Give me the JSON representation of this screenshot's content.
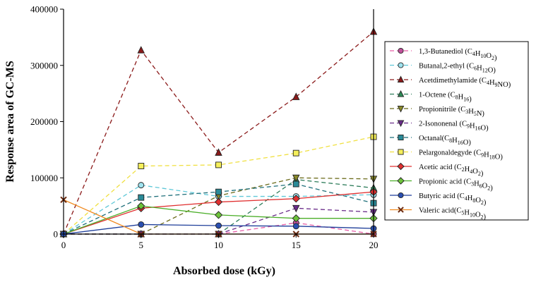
{
  "chart_data": {
    "type": "line",
    "title": "",
    "xlabel": "Absorbed dose (kGy)",
    "ylabel": "Response area of GC-MS",
    "x": [
      0,
      5,
      10,
      15,
      20
    ],
    "xlim": [
      0,
      20
    ],
    "ylim": [
      0,
      400000
    ],
    "x_ticks": [
      "0",
      "5",
      "10",
      "15",
      "20"
    ],
    "y_ticks": [
      "0",
      "100000",
      "200000",
      "300000",
      "400000"
    ],
    "grid": false,
    "legend_position": "right",
    "series": [
      {
        "name": "1,3-Butanediol (C4H10O2)",
        "name_parts": [
          {
            "t": "1,3-Butanediol (C"
          },
          {
            "t": "4",
            "sub": true
          },
          {
            "t": "H"
          },
          {
            "t": "10",
            "sub": true
          },
          {
            "t": "O"
          },
          {
            "t": "2",
            "sub": true
          },
          {
            "t": ")"
          }
        ],
        "values": [
          0,
          0,
          0,
          20000,
          0
        ],
        "color": "#e75fa8",
        "fill": "#c0509a",
        "marker": "circle",
        "dash": "6,4"
      },
      {
        "name": "Butanal,2-ethyl (C6H12O)",
        "name_parts": [
          {
            "t": "Butanal,2-ethyl (C"
          },
          {
            "t": "6",
            "sub": true
          },
          {
            "t": "H"
          },
          {
            "t": "12",
            "sub": true
          },
          {
            "t": "O)"
          }
        ],
        "values": [
          0,
          87000,
          67000,
          67000,
          70000
        ],
        "color": "#5fc8d8",
        "fill": "#9fe3ef",
        "marker": "circle",
        "dash": "6,4"
      },
      {
        "name": "Acetdimethylamide (C4H9NO)",
        "name_parts": [
          {
            "t": "Acetdimethylamide (C"
          },
          {
            "t": "4",
            "sub": true
          },
          {
            "t": "H"
          },
          {
            "t": "9",
            "sub": true
          },
          {
            "t": "NO)"
          }
        ],
        "values": [
          0,
          327000,
          145000,
          244000,
          360000
        ],
        "color": "#8b1a1a",
        "fill": "#8b1a1a",
        "marker": "triangle",
        "dash": "6,4"
      },
      {
        "name": "1-Octene (C8H16)",
        "name_parts": [
          {
            "t": "1-Octene (C"
          },
          {
            "t": "8",
            "sub": true
          },
          {
            "t": "H"
          },
          {
            "t": "16",
            "sub": true
          },
          {
            "t": ")"
          }
        ],
        "values": [
          0,
          0,
          0,
          97000,
          82000
        ],
        "color": "#2e7d5b",
        "fill": "#2e8b57",
        "marker": "triangle",
        "dash": "6,4"
      },
      {
        "name": "Propionitrile (C3H5N)",
        "name_parts": [
          {
            "t": "Propionitrile (C"
          },
          {
            "t": "3",
            "sub": true
          },
          {
            "t": "H"
          },
          {
            "t": "5",
            "sub": true
          },
          {
            "t": "N)"
          }
        ],
        "values": [
          0,
          0,
          68000,
          100000,
          98000
        ],
        "color": "#6b6b1a",
        "fill": "#8a8a2a",
        "marker": "triangle-down",
        "dash": "6,4"
      },
      {
        "name": "2-Isononenal (C9H16O)",
        "name_parts": [
          {
            "t": "2-Isononenal (C"
          },
          {
            "t": "9",
            "sub": true
          },
          {
            "t": "H"
          },
          {
            "t": "16",
            "sub": true
          },
          {
            "t": "O)"
          }
        ],
        "values": [
          0,
          0,
          0,
          46000,
          39000
        ],
        "color": "#6a2c8a",
        "fill": "#6a2c8a",
        "marker": "triangle-down",
        "dash": "6,4"
      },
      {
        "name": "Octanal(C8H16O)",
        "name_parts": [
          {
            "t": "Octanal(C"
          },
          {
            "t": "8",
            "sub": true
          },
          {
            "t": "H"
          },
          {
            "t": "16",
            "sub": true
          },
          {
            "t": "O)"
          }
        ],
        "values": [
          0,
          65000,
          75000,
          89000,
          55000
        ],
        "color": "#1f6f7a",
        "fill": "#2a8b98",
        "marker": "square",
        "dash": "6,4"
      },
      {
        "name": "Pelargonaldegyde (C9H18O)",
        "name_parts": [
          {
            "t": "Pelargonaldegyde (C"
          },
          {
            "t": "9",
            "sub": true
          },
          {
            "t": "H"
          },
          {
            "t": "18",
            "sub": true
          },
          {
            "t": "O)"
          }
        ],
        "values": [
          0,
          121000,
          123000,
          144000,
          173000
        ],
        "color": "#f0e040",
        "fill": "#f5ef5a",
        "marker": "square",
        "dash": "6,4"
      },
      {
        "name": "Acetic acid (C2H4O2)",
        "name_parts": [
          {
            "t": "Acetic acid (C"
          },
          {
            "t": "2",
            "sub": true
          },
          {
            "t": "H"
          },
          {
            "t": "4",
            "sub": true
          },
          {
            "t": "O"
          },
          {
            "t": "2",
            "sub": true
          },
          {
            "t": ")"
          }
        ],
        "values": [
          0,
          46000,
          57000,
          63000,
          75000
        ],
        "color": "#e03030",
        "fill": "#e03030",
        "marker": "diamond",
        "dash": ""
      },
      {
        "name": "Propionic acid (C3H6O2)",
        "name_parts": [
          {
            "t": "Propionic acid (C"
          },
          {
            "t": "3",
            "sub": true
          },
          {
            "t": "H"
          },
          {
            "t": "6",
            "sub": true
          },
          {
            "t": "O"
          },
          {
            "t": "2",
            "sub": true
          },
          {
            "t": ")"
          }
        ],
        "values": [
          0,
          50000,
          34000,
          28000,
          28000
        ],
        "color": "#4caf2a",
        "fill": "#6cc33a",
        "marker": "diamond",
        "dash": ""
      },
      {
        "name": "Butyric acid (C4H8O2)",
        "name_parts": [
          {
            "t": "Butyric acid (C"
          },
          {
            "t": "4",
            "sub": true
          },
          {
            "t": "H"
          },
          {
            "t": "8",
            "sub": true
          },
          {
            "t": "O"
          },
          {
            "t": "2",
            "sub": true
          },
          {
            "t": ")"
          }
        ],
        "values": [
          0,
          17000,
          15000,
          14000,
          10000
        ],
        "color": "#1f3f9a",
        "fill": "#2a4fb0",
        "marker": "circle",
        "dash": ""
      },
      {
        "name": "Valeric acid(C5H10O2)",
        "name_parts": [
          {
            "t": "Valeric acid(C"
          },
          {
            "t": "5",
            "sub": true
          },
          {
            "t": "H"
          },
          {
            "t": "10",
            "sub": true
          },
          {
            "t": "O"
          },
          {
            "t": "2",
            "sub": true
          },
          {
            "t": ")"
          }
        ],
        "values": [
          61000,
          0,
          0,
          0,
          0
        ],
        "color": "#f08a20",
        "fill": "#6b2a10",
        "marker": "x",
        "dash": ""
      }
    ]
  }
}
